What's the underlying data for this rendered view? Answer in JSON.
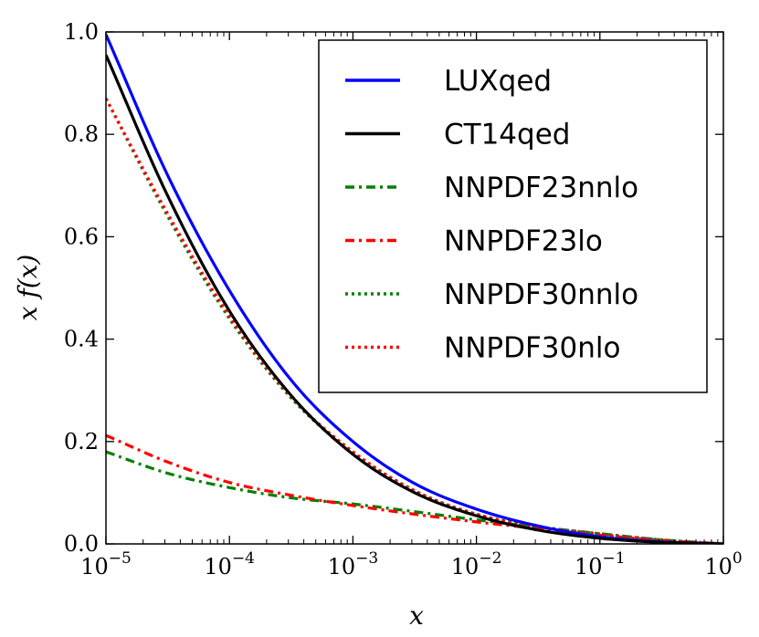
{
  "chart_data": {
    "type": "line",
    "title": "",
    "xlabel": "x",
    "ylabel": "x f(x)",
    "xscale": "log",
    "xlim": [
      1e-05,
      1
    ],
    "ylim": [
      0.0,
      1.0
    ],
    "grid": false,
    "legend_position": "top-right",
    "x_tick_labels": [
      {
        "base": "10",
        "exp": "−5"
      },
      {
        "base": "10",
        "exp": "−4"
      },
      {
        "base": "10",
        "exp": "−3"
      },
      {
        "base": "10",
        "exp": "−2"
      },
      {
        "base": "10",
        "exp": "−1"
      },
      {
        "base": "10",
        "exp": "0"
      }
    ],
    "x_tick_values": [
      1e-05,
      0.0001,
      0.001,
      0.01,
      0.1,
      1
    ],
    "y_tick_labels": [
      "0.0",
      "0.2",
      "0.4",
      "0.6",
      "0.8",
      "1.0"
    ],
    "y_tick_values": [
      0.0,
      0.2,
      0.4,
      0.6,
      0.8,
      1.0
    ],
    "x": [
      1e-05,
      3.16e-05,
      0.0001,
      0.000316,
      0.001,
      0.00316,
      0.01,
      0.0316,
      0.1,
      0.316,
      1
    ],
    "series": [
      {
        "name": "LUXqed",
        "color": "#0000ff",
        "style": "solid",
        "values": [
          0.995,
          0.72,
          0.495,
          0.32,
          0.2,
          0.118,
          0.068,
          0.035,
          0.014,
          0.004,
          0.0
        ]
      },
      {
        "name": "CT14qed",
        "color": "#000000",
        "style": "solid",
        "values": [
          0.955,
          0.68,
          0.455,
          0.29,
          0.175,
          0.1,
          0.055,
          0.027,
          0.011,
          0.003,
          0.0
        ]
      },
      {
        "name": "NNPDF23nnlo",
        "color": "#008000",
        "style": "dashdot",
        "values": [
          0.18,
          0.138,
          0.11,
          0.09,
          0.078,
          0.063,
          0.047,
          0.033,
          0.02,
          0.008,
          0.0
        ]
      },
      {
        "name": "NNPDF23lo",
        "color": "#ff0000",
        "style": "dashdot",
        "values": [
          0.212,
          0.16,
          0.12,
          0.095,
          0.075,
          0.058,
          0.043,
          0.03,
          0.017,
          0.007,
          0.0
        ]
      },
      {
        "name": "NNPDF30nnlo",
        "color": "#008000",
        "style": "dotted",
        "values": [
          0.87,
          0.64,
          0.44,
          0.285,
          0.178,
          0.103,
          0.058,
          0.034,
          0.02,
          0.008,
          0.0
        ]
      },
      {
        "name": "NNPDF30nlo",
        "color": "#ff0000",
        "style": "dotted",
        "values": [
          0.87,
          0.645,
          0.445,
          0.288,
          0.18,
          0.104,
          0.058,
          0.033,
          0.019,
          0.007,
          0.0
        ]
      }
    ]
  }
}
